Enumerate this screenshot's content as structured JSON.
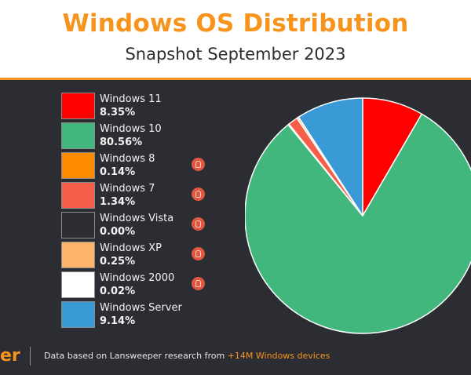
{
  "header": {
    "title": "Windows OS Distribution",
    "subtitle": "Snapshot September 2023"
  },
  "footer": {
    "brand": "er",
    "text": "Data based on Lansweeper research from ",
    "highlight": "+14M Windows devices"
  },
  "chart_data": {
    "type": "pie",
    "title": "Windows OS Distribution",
    "subtitle": "Snapshot September 2023",
    "legend_position": "left",
    "slices": [
      {
        "label": "Windows 11",
        "value_label": "8.35%",
        "value": 8.35,
        "color": "#ff0000",
        "flag": false
      },
      {
        "label": "Windows 10",
        "value_label": "80.56%",
        "value": 80.56,
        "color": "#42b77d",
        "flag": false
      },
      {
        "label": "Windows 8",
        "value_label": "0.14%",
        "value": 0.14,
        "color": "#ff8c00",
        "flag": true
      },
      {
        "label": "Windows 7",
        "value_label": "1.34%",
        "value": 1.34,
        "color": "#f55f49",
        "flag": true
      },
      {
        "label": "Windows Vista",
        "value_label": "0.00%",
        "value": 0.0,
        "color": "#2b2d32",
        "flag": true
      },
      {
        "label": "Windows XP",
        "value_label": "0.25%",
        "value": 0.25,
        "color": "#fdb56c",
        "flag": true
      },
      {
        "label": "Windows 2000",
        "value_label": "0.02%",
        "value": 0.02,
        "color": "#ffffff",
        "flag": true
      },
      {
        "label": "Windows Server",
        "value_label": "9.14%",
        "value": 9.14,
        "color": "#3a9ad6",
        "flag": false
      }
    ],
    "flag_icon": "lightbulb-icon"
  }
}
